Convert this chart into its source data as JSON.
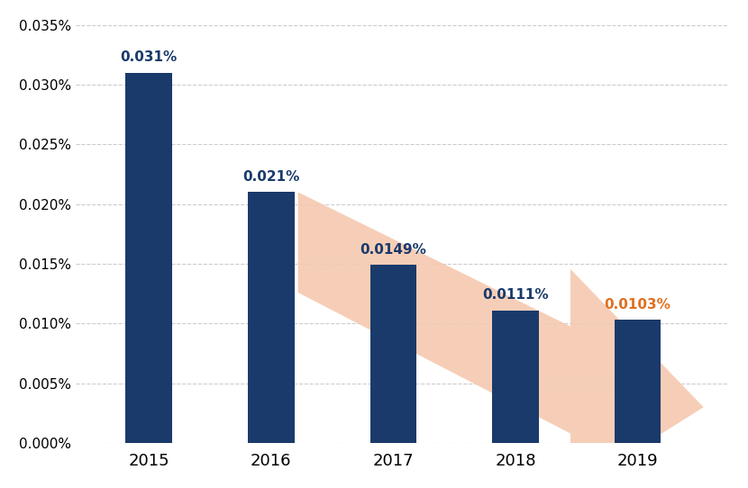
{
  "categories": [
    "2015",
    "2016",
    "2017",
    "2018",
    "2019"
  ],
  "values": [
    0.00031,
    0.00021,
    0.000149,
    0.000111,
    0.000103
  ],
  "labels": [
    "0.031%",
    "0.021%",
    "0.0149%",
    "0.0111%",
    "0.0103%"
  ],
  "bar_color": "#1a3a6b",
  "last_bar_label_color": "#e07020",
  "label_color": "#1a3a6b",
  "arrow_color": "#f5c9b0",
  "background_color": "#ffffff",
  "ylim": [
    0,
    0.000355
  ],
  "yticks": [
    0.0,
    5e-05,
    0.0001,
    0.00015,
    0.0002,
    0.00025,
    0.0003,
    0.00035
  ],
  "ytick_labels": [
    "0.000%",
    "0.005%",
    "0.010%",
    "0.015%",
    "0.020%",
    "0.025%",
    "0.030%",
    "0.035%"
  ],
  "grid_color": "#cccccc",
  "bar_width": 0.38
}
